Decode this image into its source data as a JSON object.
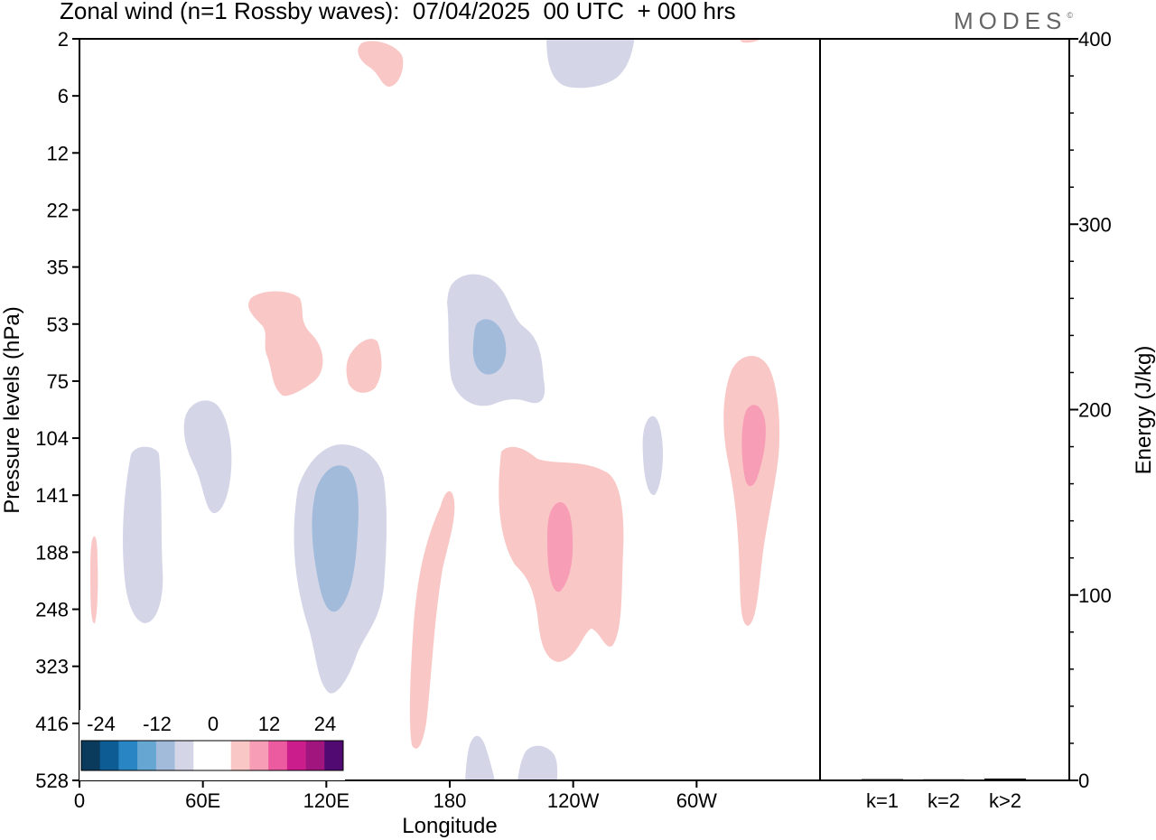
{
  "header": {
    "title": "Zonal wind (n=1 Rossby waves):  07/04/2025  00 UTC  + 000 hrs",
    "brand": "MODES",
    "brand_mark": "©"
  },
  "colors": {
    "neg3": "#a2bbdb",
    "neg1": "#d4d6e8",
    "pos1": "#f9c8c6",
    "pos2": "#f79db6",
    "axis": "#000000"
  },
  "chart_data": [
    {
      "type": "heatmap",
      "title": "Zonal wind (n=1 Rossby waves):  07/04/2025  00 UTC  + 000 hrs",
      "xlabel": "Longitude",
      "ylabel": "Pressure levels (hPa)",
      "xticks": [
        "0",
        "60E",
        "120E",
        "180",
        "120W",
        "60W"
      ],
      "yticks": [
        "2",
        "6",
        "12",
        "22",
        "35",
        "53",
        "75",
        "104",
        "141",
        "188",
        "248",
        "323",
        "416",
        "528"
      ],
      "colorbar": {
        "labels": [
          "-24",
          "-12",
          "0",
          "12",
          "24"
        ],
        "colors": [
          "#0b3b5c",
          "#0d5d94",
          "#2a85c4",
          "#66a6d2",
          "#a2bbdb",
          "#d4d6e8",
          "#ffffff",
          "#ffffff",
          "#f9c8c6",
          "#f79db6",
          "#ec5aa0",
          "#cc1d8c",
          "#a0157e",
          "#520a73"
        ]
      },
      "features": [
        {
          "name": "pos-upper-stratosphere",
          "value": 6,
          "lon": 145,
          "level": "4"
        },
        {
          "name": "neg-upper-stratosphere",
          "value": -6,
          "lon": 235,
          "level": "2"
        },
        {
          "name": "pos-lower-stratosphere-west",
          "value": 6,
          "lon": 100,
          "level": "53"
        },
        {
          "name": "pos-lower-stratosphere-east",
          "value": 6,
          "lon": 138,
          "level": "75"
        },
        {
          "name": "neg-lower-stratosphere",
          "value": -12,
          "lon": 200,
          "level": "53"
        },
        {
          "name": "neg-upper-troposphere-30E",
          "value": -6,
          "lon": 28,
          "level": "188"
        },
        {
          "name": "neg-upper-troposphere-50E",
          "value": -6,
          "lon": 53,
          "level": "104"
        },
        {
          "name": "neg-troposphere-120E",
          "value": -12,
          "lon": 123,
          "level": "188"
        },
        {
          "name": "pos-troposphere-170E",
          "value": 6,
          "lon": 171,
          "level": "323"
        },
        {
          "name": "pos-troposphere-120W",
          "value": 12,
          "lon": 238,
          "level": "188"
        },
        {
          "name": "neg-troposphere-85W",
          "value": -6,
          "lon": 275,
          "level": "141"
        },
        {
          "name": "pos-troposphere-55W",
          "value": 12,
          "lon": 321,
          "level": "104"
        },
        {
          "name": "neg-lower-troposphere-180",
          "value": -6,
          "lon": 192,
          "level": "528"
        },
        {
          "name": "neg-lower-troposphere-140W",
          "value": -6,
          "lon": 221,
          "level": "528"
        },
        {
          "name": "pos-edge-0E",
          "value": 6,
          "lon": 3,
          "level": "248"
        }
      ]
    },
    {
      "type": "bar",
      "ylabel": "Energy (J/kg)",
      "categories": [
        "k=1",
        "k=2",
        "k>2"
      ],
      "values": [
        0.2,
        0.1,
        0.5
      ],
      "ylim": [
        0,
        400
      ],
      "yticks": [
        "0",
        "100",
        "200",
        "300",
        "400"
      ]
    }
  ]
}
